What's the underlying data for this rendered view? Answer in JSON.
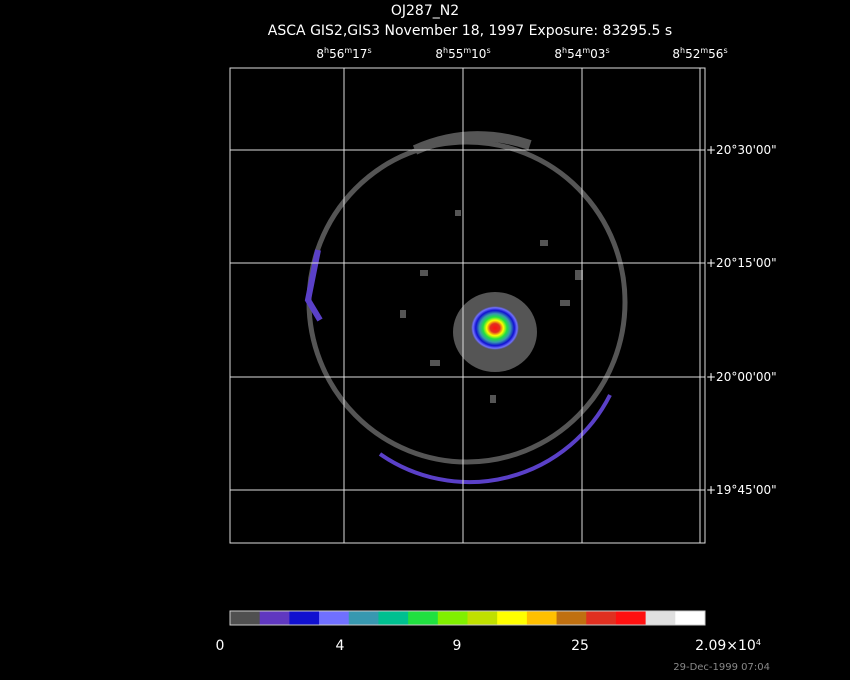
{
  "title": "OJ287_N2",
  "subtitle": "ASCA GIS2,GIS3 November 18, 1997 Exposure: 83295.5 s",
  "ra_labels": [
    [
      "8",
      "h",
      "56",
      "m",
      "17",
      "s"
    ],
    [
      "8",
      "h",
      "55",
      "m",
      "10",
      "s"
    ],
    [
      "8",
      "h",
      "54",
      "m",
      "03",
      "s"
    ],
    [
      "8",
      "h",
      "52",
      "m",
      "56",
      "s"
    ]
  ],
  "dec_labels": [
    "+20°30'00\"",
    "+20°15'00\"",
    "+20°00'00\"",
    "+19°45'00\""
  ],
  "colorbar": {
    "colors": [
      "#505050",
      "#6038c0",
      "#1010d0",
      "#7070ff",
      "#3898b0",
      "#00c090",
      "#20e040",
      "#80f000",
      "#c0e000",
      "#ffff00",
      "#ffc000",
      "#c07010",
      "#e03020",
      "#ff1010",
      "#e0e0e0",
      "#ffffff"
    ],
    "labels": [
      [
        "0"
      ],
      [
        "4"
      ],
      [
        "9"
      ],
      [
        "25"
      ],
      [
        "2.09×10",
        "4"
      ]
    ]
  },
  "timestamp": "29-Dec-1999 07:04"
}
